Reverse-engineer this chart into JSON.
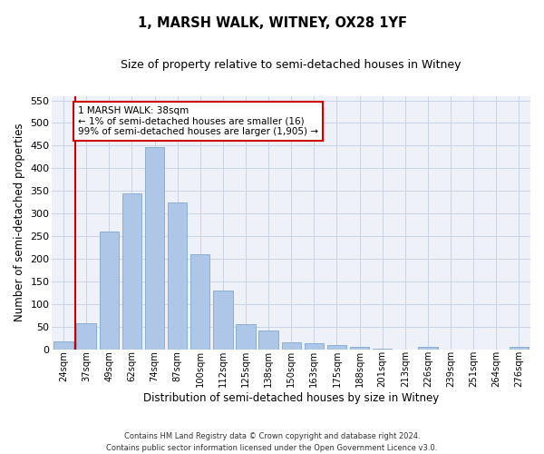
{
  "title": "1, MARSH WALK, WITNEY, OX28 1YF",
  "subtitle": "Size of property relative to semi-detached houses in Witney",
  "xlabel": "Distribution of semi-detached houses by size in Witney",
  "ylabel": "Number of semi-detached properties",
  "categories": [
    "24sqm",
    "37sqm",
    "49sqm",
    "62sqm",
    "74sqm",
    "87sqm",
    "100sqm",
    "112sqm",
    "125sqm",
    "138sqm",
    "150sqm",
    "163sqm",
    "175sqm",
    "188sqm",
    "201sqm",
    "213sqm",
    "226sqm",
    "239sqm",
    "251sqm",
    "264sqm",
    "276sqm"
  ],
  "values": [
    18,
    58,
    260,
    345,
    447,
    325,
    210,
    130,
    55,
    42,
    16,
    13,
    10,
    6,
    2,
    0,
    5,
    0,
    0,
    0,
    5
  ],
  "bar_color": "#aec6e8",
  "bar_edge_color": "#8aafd4",
  "grid_color": "#c8d4e8",
  "background_color": "#eef2f8",
  "vline_color": "#cc0000",
  "vline_x_index": 1,
  "annotation_text": "1 MARSH WALK: 38sqm\n← 1% of semi-detached houses are smaller (16)\n99% of semi-detached houses are larger (1,905) →",
  "annotation_box_facecolor": "#ffffff",
  "annotation_box_edgecolor": "#cc0000",
  "footer": "Contains HM Land Registry data © Crown copyright and database right 2024.\nContains public sector information licensed under the Open Government Licence v3.0.",
  "ylim": [
    0,
    560
  ],
  "yticks": [
    0,
    50,
    100,
    150,
    200,
    250,
    300,
    350,
    400,
    450,
    500,
    550
  ]
}
